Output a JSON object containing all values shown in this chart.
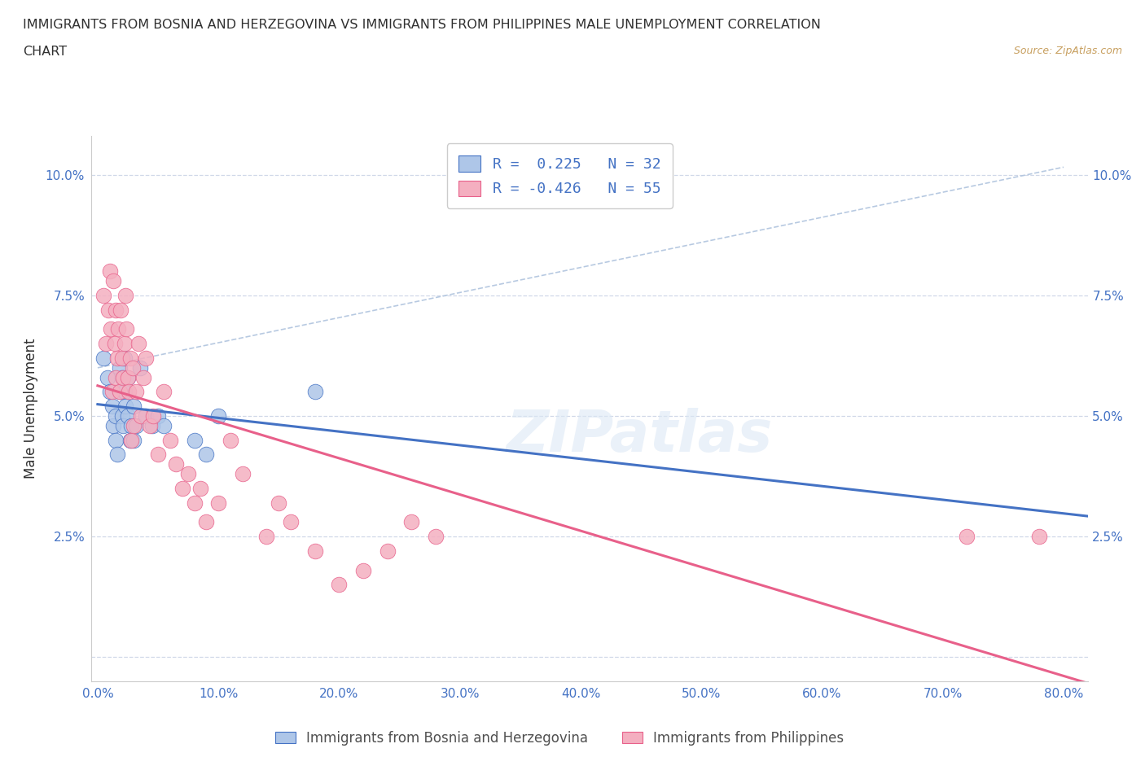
{
  "title_line1": "IMMIGRANTS FROM BOSNIA AND HERZEGOVINA VS IMMIGRANTS FROM PHILIPPINES MALE UNEMPLOYMENT CORRELATION",
  "title_line2": "CHART",
  "source": "Source: ZipAtlas.com",
  "ylabel": "Male Unemployment",
  "r_bosnia": 0.225,
  "n_bosnia": 32,
  "r_philippines": -0.426,
  "n_philippines": 55,
  "color_bosnia": "#aec6e8",
  "color_philippines": "#f4afc0",
  "line_color_bosnia": "#4472c4",
  "line_color_philippines": "#e8608a",
  "trendline_dashed_color": "#b0c4de",
  "xlim": [
    -0.005,
    0.82
  ],
  "ylim": [
    -0.005,
    0.108
  ],
  "xticks": [
    0.0,
    0.1,
    0.2,
    0.3,
    0.4,
    0.5,
    0.6,
    0.7,
    0.8
  ],
  "yticks": [
    0.0,
    0.025,
    0.05,
    0.075,
    0.1
  ],
  "xticklabels": [
    "0.0%",
    "10.0%",
    "20.0%",
    "30.0%",
    "40.0%",
    "50.0%",
    "60.0%",
    "70.0%",
    "80.0%"
  ],
  "yticklabels": [
    "",
    "2.5%",
    "5.0%",
    "7.5%",
    "10.0%"
  ],
  "grid_color": "#d0d8e8",
  "watermark_text": "ZIPatlas",
  "legend_text_color": "#4472c4",
  "title_color": "#303030",
  "source_color": "#c8a060",
  "tick_label_color": "#4472c4",
  "bosnia_x": [
    0.005,
    0.008,
    0.01,
    0.012,
    0.013,
    0.015,
    0.015,
    0.016,
    0.018,
    0.018,
    0.02,
    0.02,
    0.021,
    0.022,
    0.022,
    0.023,
    0.025,
    0.025,
    0.027,
    0.028,
    0.03,
    0.03,
    0.032,
    0.035,
    0.04,
    0.045,
    0.05,
    0.055,
    0.08,
    0.09,
    0.1,
    0.18
  ],
  "bosnia_y": [
    0.062,
    0.058,
    0.055,
    0.052,
    0.048,
    0.05,
    0.045,
    0.042,
    0.06,
    0.055,
    0.058,
    0.05,
    0.048,
    0.062,
    0.055,
    0.052,
    0.058,
    0.05,
    0.045,
    0.048,
    0.052,
    0.045,
    0.048,
    0.06,
    0.05,
    0.048,
    0.05,
    0.048,
    0.045,
    0.042,
    0.05,
    0.055
  ],
  "philippines_x": [
    0.005,
    0.007,
    0.009,
    0.01,
    0.011,
    0.012,
    0.013,
    0.014,
    0.015,
    0.015,
    0.016,
    0.017,
    0.018,
    0.019,
    0.02,
    0.021,
    0.022,
    0.023,
    0.024,
    0.025,
    0.026,
    0.027,
    0.028,
    0.029,
    0.03,
    0.032,
    0.034,
    0.036,
    0.038,
    0.04,
    0.043,
    0.046,
    0.05,
    0.055,
    0.06,
    0.065,
    0.07,
    0.075,
    0.08,
    0.085,
    0.09,
    0.1,
    0.11,
    0.12,
    0.14,
    0.15,
    0.16,
    0.18,
    0.2,
    0.22,
    0.24,
    0.26,
    0.28,
    0.72,
    0.78
  ],
  "philippines_y": [
    0.075,
    0.065,
    0.072,
    0.08,
    0.068,
    0.055,
    0.078,
    0.065,
    0.058,
    0.072,
    0.062,
    0.068,
    0.055,
    0.072,
    0.062,
    0.058,
    0.065,
    0.075,
    0.068,
    0.058,
    0.055,
    0.062,
    0.045,
    0.06,
    0.048,
    0.055,
    0.065,
    0.05,
    0.058,
    0.062,
    0.048,
    0.05,
    0.042,
    0.055,
    0.045,
    0.04,
    0.035,
    0.038,
    0.032,
    0.035,
    0.028,
    0.032,
    0.045,
    0.038,
    0.025,
    0.032,
    0.028,
    0.022,
    0.015,
    0.018,
    0.022,
    0.028,
    0.025,
    0.025,
    0.025
  ],
  "legend_label1": "R =  0.225   N = 32",
  "legend_label2": "R = -0.426   N = 55",
  "bottom_label1": "Immigrants from Bosnia and Herzegovina",
  "bottom_label2": "Immigrants from Philippines"
}
